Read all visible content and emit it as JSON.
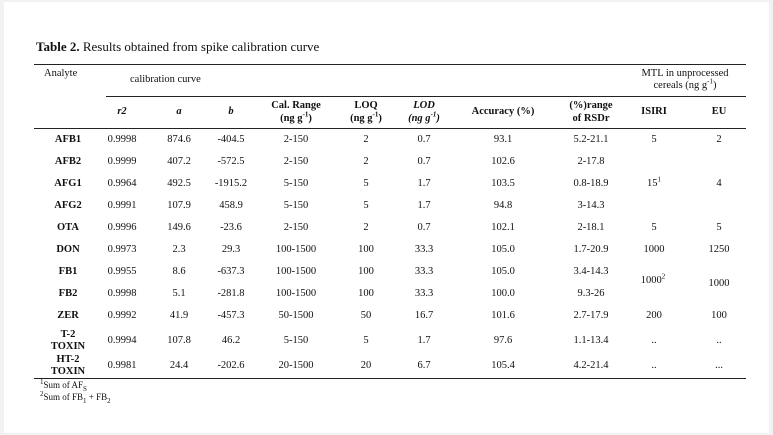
{
  "table": {
    "caption_label": "Table 2.",
    "caption_text": " Results obtained from spike calibration curve",
    "group_headers": {
      "analyte": "Analyte",
      "calibration": "calibration curve",
      "mtl_line1": "MTL in unprocessed",
      "mtl_line2": "cereals (ng g",
      "mtl_sup": "-1",
      "mtl_end": ")"
    },
    "column_headers": {
      "r2": "r2",
      "a": "a",
      "b": "b",
      "cal_range_1": "Cal. Range",
      "cal_range_2": "(ng g",
      "cal_range_sup": "-1",
      "cal_range_end": ")",
      "loq_1": "LOQ",
      "loq_2": "(ng g",
      "loq_sup": "-1",
      "loq_end": ")",
      "lod_1": "LOD",
      "lod_2": "(ng g",
      "lod_sup": "-1",
      "lod_end": ")",
      "accuracy": "Accuracy (%)",
      "rsd_1": "(%)range",
      "rsd_2": "of RSDr",
      "isiri": "ISIRI",
      "eu": "EU"
    },
    "rows": [
      {
        "analyte": "AFB1",
        "r2": "0.9998",
        "a": "874.6",
        "b": "-404.5",
        "cal": "2-150",
        "loq": "2",
        "lod": "0.7",
        "acc": "93.1",
        "rsd": "5.2-21.1",
        "isiri": "5",
        "eu": "2"
      },
      {
        "analyte": "AFB2",
        "r2": "0.9999",
        "a": "407.2",
        "b": "-572.5",
        "cal": "2-150",
        "loq": "2",
        "lod": "0.7",
        "acc": "102.6",
        "rsd": "2-17.8",
        "isiri": "",
        "eu": ""
      },
      {
        "analyte": "AFG1",
        "r2": "0.9964",
        "a": "492.5",
        "b": "-1915.2",
        "cal": "5-150",
        "loq": "5",
        "lod": "1.7",
        "acc": "103.5",
        "rsd": "0.8-18.9",
        "isiri": "15",
        "isiri_sup": "1",
        "eu": "4"
      },
      {
        "analyte": "AFG2",
        "r2": "0.9991",
        "a": "107.9",
        "b": "458.9",
        "cal": "5-150",
        "loq": "5",
        "lod": "1.7",
        "acc": "94.8",
        "rsd": "3-14.3",
        "isiri": "",
        "eu": ""
      },
      {
        "analyte": "OTA",
        "r2": "0.9996",
        "a": "149.6",
        "b": "-23.6",
        "cal": "2-150",
        "loq": "2",
        "lod": "0.7",
        "acc": "102.1",
        "rsd": "2-18.1",
        "isiri": "5",
        "eu": "5"
      },
      {
        "analyte": "DON",
        "r2": "0.9973",
        "a": "2.3",
        "b": "29.3",
        "cal": "100-1500",
        "loq": "100",
        "lod": "33.3",
        "acc": "105.0",
        "rsd": "1.7-20.9",
        "isiri": "1000",
        "eu": "1250"
      },
      {
        "analyte": "FB1",
        "r2": "0.9955",
        "a": "8.6",
        "b": "-637.3",
        "cal": "100-1500",
        "loq": "100",
        "lod": "33.3",
        "acc": "105.0",
        "rsd": "3.4-14.3",
        "isiri": "",
        "eu": ""
      },
      {
        "analyte": "FB2",
        "r2": "0.9998",
        "a": "5.1",
        "b": "-281.8",
        "cal": "100-1500",
        "loq": "100",
        "lod": "33.3",
        "acc": "100.0",
        "rsd": "9.3-26",
        "isiri": "",
        "eu": ""
      },
      {
        "analyte": "ZER",
        "r2": "0.9992",
        "a": "41.9",
        "b": "-457.3",
        "cal": "50-1500",
        "loq": "50",
        "lod": "16.7",
        "acc": "101.6",
        "rsd": "2.7-17.9",
        "isiri": "200",
        "eu": "100"
      },
      {
        "analyte": "T-2",
        "analyte2": "TOXIN",
        "r2": "0.9994",
        "a": "107.8",
        "b": "46.2",
        "cal": "5-150",
        "loq": "5",
        "lod": "1.7",
        "acc": "97.6",
        "rsd": "1.1-13.4",
        "isiri": "..",
        "eu": ".."
      },
      {
        "analyte": "HT-2",
        "analyte2": "TOXIN",
        "r2": "0.9981",
        "a": "24.4",
        "b": "-202.6",
        "cal": "20-1500",
        "loq": "20",
        "lod": "6.7",
        "acc": "105.4",
        "rsd": "4.2-21.4",
        "isiri": "..",
        "eu": "..."
      }
    ],
    "fb_merged": {
      "isiri": "1000",
      "isiri_sup": "2",
      "eu": "1000"
    },
    "footnotes": {
      "n1_sup": "1",
      "n1_text": "Sum of AF",
      "n1_sub": "S",
      "n2_sup": "2",
      "n2_text": "Sum of FB",
      "n2_sub1": "1",
      "n2_mid": " + FB",
      "n2_sub2": "2"
    }
  }
}
